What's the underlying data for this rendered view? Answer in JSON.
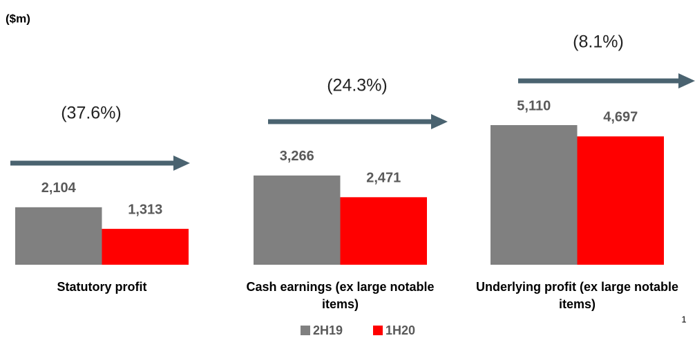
{
  "chart_data": {
    "type": "bar",
    "unit_label": "($m)",
    "categories": [
      "Statutory profit",
      "Cash earnings (ex large notable items)",
      "Underlying profit (ex large notable items)"
    ],
    "series": [
      {
        "name": "2H19",
        "color": "#808080",
        "values": [
          2104,
          3266,
          5110
        ],
        "value_labels": [
          "2,104",
          "3,266",
          "5,110"
        ]
      },
      {
        "name": "1H20",
        "color": "#ff0000",
        "values": [
          1313,
          2471,
          4697
        ],
        "value_labels": [
          "1,313",
          "2,471",
          "4,697"
        ]
      }
    ],
    "annotations": [
      "(37.6%)",
      "(24.3%)",
      "(8.1%)"
    ],
    "arrow_color": "#4a6370",
    "page_number": "1"
  }
}
